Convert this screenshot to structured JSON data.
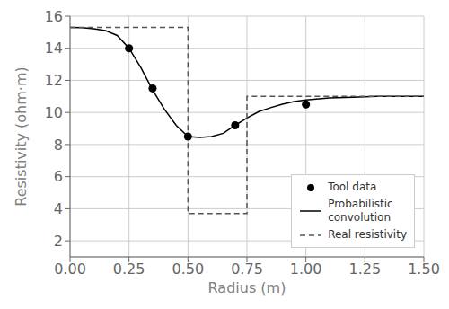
{
  "chart_data": {
    "type": "line",
    "xlabel": "Radius (m)",
    "ylabel": "Resistivity (ohm·m)",
    "xlim": [
      0.0,
      1.5
    ],
    "ylim": [
      1.0,
      16.0
    ],
    "xticks": [
      {
        "value": 0.0,
        "label": "0.00"
      },
      {
        "value": 0.25,
        "label": "0.25"
      },
      {
        "value": 0.5,
        "label": "0.50"
      },
      {
        "value": 0.75,
        "label": "0.75"
      },
      {
        "value": 1.0,
        "label": "1.00"
      },
      {
        "value": 1.25,
        "label": "1.25"
      },
      {
        "value": 1.5,
        "label": "1.50"
      }
    ],
    "yticks": [
      2,
      4,
      6,
      8,
      10,
      12,
      14,
      16
    ],
    "grid": true,
    "legend": "lower right",
    "series": [
      {
        "name": "Tool data",
        "type": "scatter",
        "marker": "o",
        "color": "#000000",
        "x": [
          0.25,
          0.35,
          0.5,
          0.7,
          1.0
        ],
        "values": [
          14.0,
          11.5,
          8.5,
          9.2,
          10.5
        ]
      },
      {
        "name": "Probabilistic\nconvolution",
        "type": "line",
        "line_style": "solid",
        "color": "#000000",
        "x": [
          0.0,
          0.05,
          0.1,
          0.15,
          0.2,
          0.25,
          0.3,
          0.35,
          0.4,
          0.45,
          0.5,
          0.55,
          0.6,
          0.65,
          0.7,
          0.75,
          0.8,
          0.85,
          0.9,
          0.95,
          1.0,
          1.1,
          1.2,
          1.3,
          1.4,
          1.5
        ],
        "values": [
          15.3,
          15.28,
          15.22,
          15.1,
          14.8,
          14.0,
          12.8,
          11.4,
          10.2,
          9.2,
          8.5,
          8.45,
          8.5,
          8.7,
          9.2,
          9.65,
          10.05,
          10.3,
          10.52,
          10.68,
          10.78,
          10.9,
          10.95,
          11.0,
          11.0,
          11.0
        ]
      },
      {
        "name": "Real resistivity",
        "type": "line",
        "line_style": "dashed",
        "color": "#555555",
        "x": [
          0.0,
          0.5,
          0.5,
          0.75,
          0.75,
          1.5
        ],
        "values": [
          15.3,
          15.3,
          3.7,
          3.7,
          11.0,
          11.0
        ]
      }
    ]
  }
}
